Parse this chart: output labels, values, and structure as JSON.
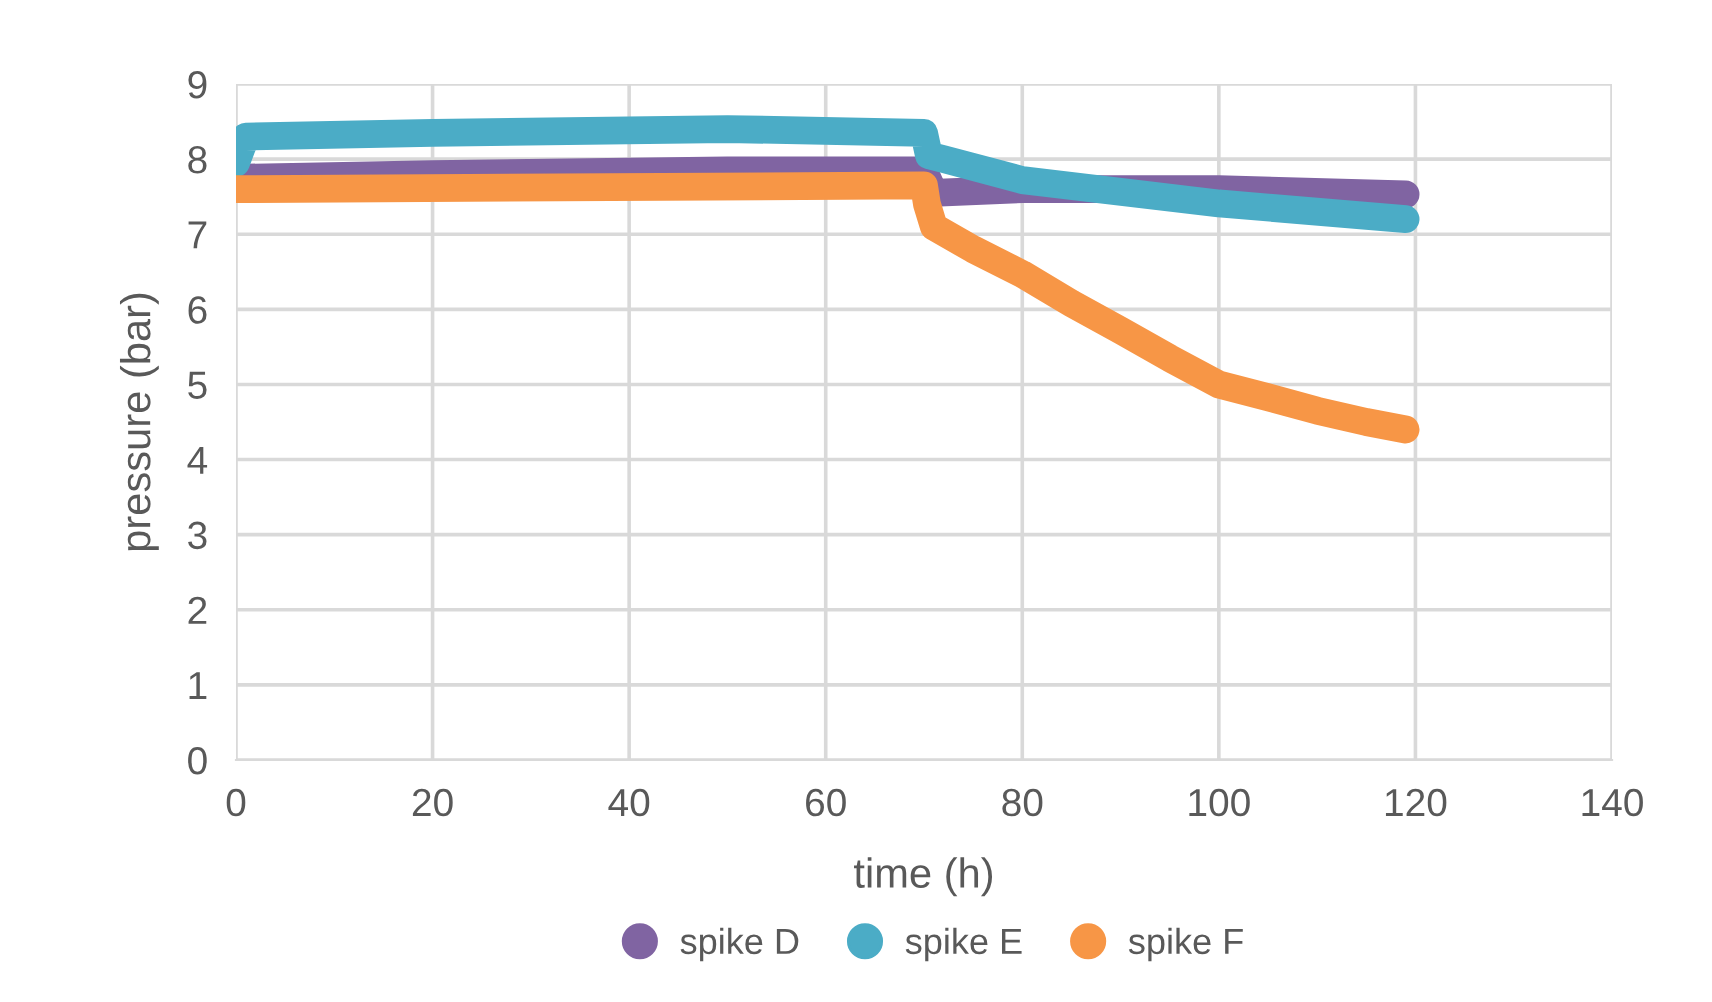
{
  "chart_data": {
    "type": "line",
    "xlabel": "time (h)",
    "ylabel": "pressure (bar)",
    "xlim": [
      0,
      140
    ],
    "xticks": [
      0,
      20,
      40,
      60,
      80,
      100,
      120,
      140
    ],
    "ylim": [
      0,
      9
    ],
    "yticks": [
      0,
      1,
      2,
      3,
      4,
      5,
      6,
      7,
      8,
      9
    ],
    "grid": true,
    "legend": "bottom",
    "line_style": "solid",
    "series": [
      {
        "name": "spike D",
        "color": "#8064a2",
        "x": [
          0,
          20,
          50,
          70,
          71,
          80,
          100,
          119
        ],
        "values": [
          7.75,
          7.8,
          7.85,
          7.85,
          7.55,
          7.6,
          7.6,
          7.53
        ]
      },
      {
        "name": "spike E",
        "color": "#4bacc6",
        "x": [
          0,
          1,
          20,
          50,
          70,
          70.5,
          72,
          80,
          100,
          119
        ],
        "values": [
          7.95,
          8.3,
          8.35,
          8.4,
          8.35,
          8.05,
          8.0,
          7.72,
          7.41,
          7.2
        ]
      },
      {
        "name": "spike F",
        "color": "#f79646",
        "x": [
          0,
          70,
          70.3,
          71,
          75,
          80,
          85,
          90,
          95,
          100,
          105,
          110,
          115,
          119
        ],
        "values": [
          7.6,
          7.65,
          7.4,
          7.1,
          6.8,
          6.47,
          6.08,
          5.72,
          5.35,
          5.0,
          4.83,
          4.65,
          4.5,
          4.4
        ]
      }
    ]
  }
}
